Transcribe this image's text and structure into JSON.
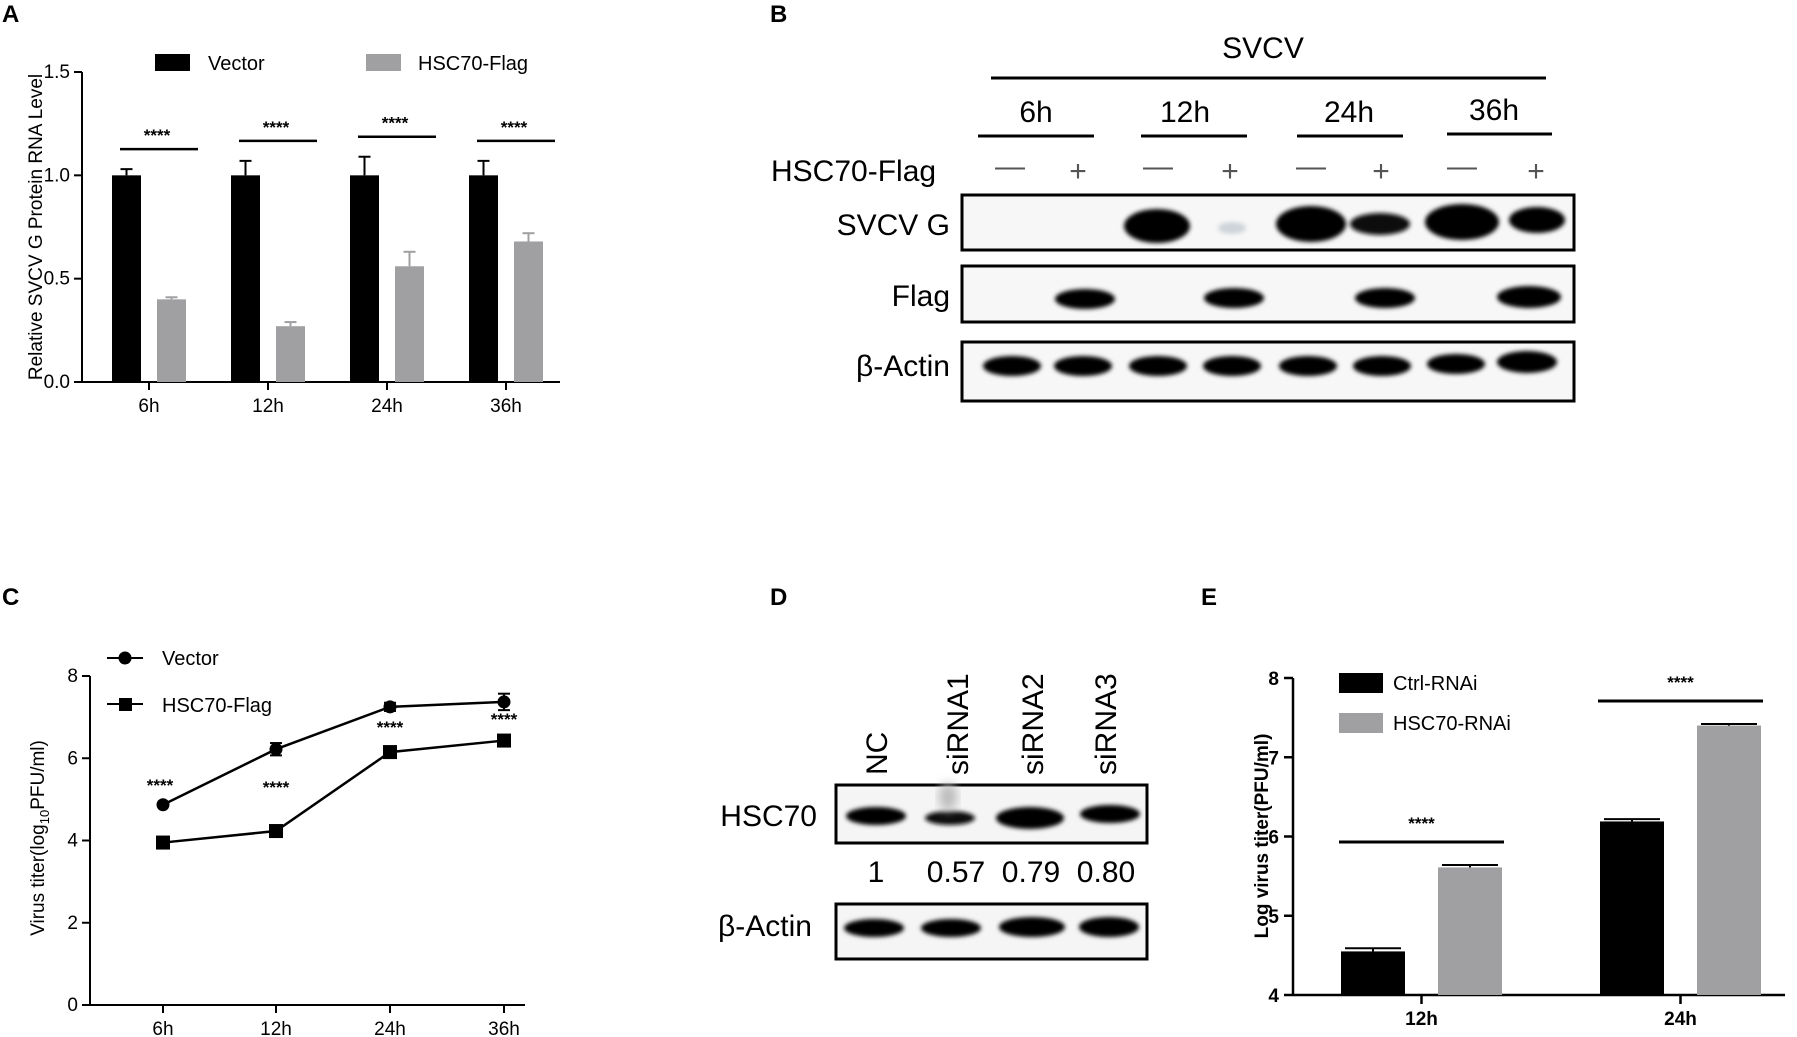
{
  "panels": {
    "A": {
      "label": "A"
    },
    "B": {
      "label": "B",
      "top_label": "SVCV",
      "timepoints": [
        "6h",
        "12h",
        "24h",
        "36h"
      ],
      "row_label": "HSC70-Flag",
      "minus": "—",
      "plus": "+",
      "blot_rows": [
        "SVCV G",
        "Flag",
        "β-Actin"
      ]
    },
    "C": {
      "label": "C"
    },
    "D": {
      "label": "D",
      "lanes": [
        "NC",
        "siRNA1",
        "siRNA2",
        "siRNA3"
      ],
      "blot_rows": [
        "HSC70",
        "β-Actin"
      ],
      "ratios": [
        "1",
        "0.57",
        "0.79",
        "0.80"
      ]
    },
    "E": {
      "label": "E"
    }
  },
  "chart_data": [
    {
      "panel": "A",
      "type": "bar",
      "categories": [
        "6h",
        "12h",
        "24h",
        "36h"
      ],
      "series": [
        {
          "name": "Vector",
          "values": [
            1.0,
            1.0,
            1.0,
            1.0
          ],
          "errors": [
            0.03,
            0.07,
            0.09,
            0.07
          ],
          "color": "#000000"
        },
        {
          "name": "HSC70-Flag",
          "values": [
            0.4,
            0.27,
            0.56,
            0.68
          ],
          "errors": [
            0.01,
            0.02,
            0.07,
            0.04
          ],
          "color": "#a0a0a2"
        }
      ],
      "ylabel": "Relative SVCV G Protein RNA Level",
      "xlabel": "",
      "ylim": [
        0,
        1.5
      ],
      "yticks": [
        "0.0",
        "0.5",
        "1.0",
        "1.5"
      ],
      "significance": [
        "****",
        "****",
        "****",
        "****"
      ],
      "legend": "top"
    },
    {
      "panel": "C",
      "type": "line",
      "categories": [
        "6h",
        "12h",
        "24h",
        "36h"
      ],
      "series": [
        {
          "name": "Vector",
          "values": [
            4.87,
            6.22,
            7.25,
            7.37
          ],
          "errors": [
            0.05,
            0.15,
            0.1,
            0.2
          ],
          "marker": "circle"
        },
        {
          "name": "HSC70-Flag",
          "values": [
            3.95,
            4.23,
            6.15,
            6.43
          ],
          "errors": [
            0.05,
            0.05,
            0.05,
            0.1
          ],
          "marker": "square"
        }
      ],
      "ylabel_main": "Virus titer(log",
      "ylabel_sub": "10",
      "ylabel_tail": "PFU/ml)",
      "xlabel": "",
      "ylim": [
        0,
        8
      ],
      "yticks": [
        "0",
        "2",
        "4",
        "6",
        "8"
      ],
      "significance": [
        "****",
        "****",
        "****",
        "****"
      ],
      "legend": "top-left"
    },
    {
      "panel": "E",
      "type": "bar",
      "categories": [
        "12h",
        "24h"
      ],
      "series": [
        {
          "name": "Ctrl-RNAi",
          "values": [
            4.55,
            6.19
          ],
          "errors": [
            0.04,
            0.03
          ],
          "color": "#000000"
        },
        {
          "name": "HSC70-RNAi",
          "values": [
            5.61,
            7.4
          ],
          "errors": [
            0.03,
            0.02
          ],
          "color": "#a0a0a2"
        }
      ],
      "ylabel": "Log virus titer(PFU/ml)",
      "xlabel": "",
      "ylim": [
        4,
        8
      ],
      "yticks": [
        "4",
        "5",
        "6",
        "7",
        "8"
      ],
      "significance": [
        "****",
        "****"
      ],
      "legend": "top-left"
    }
  ]
}
